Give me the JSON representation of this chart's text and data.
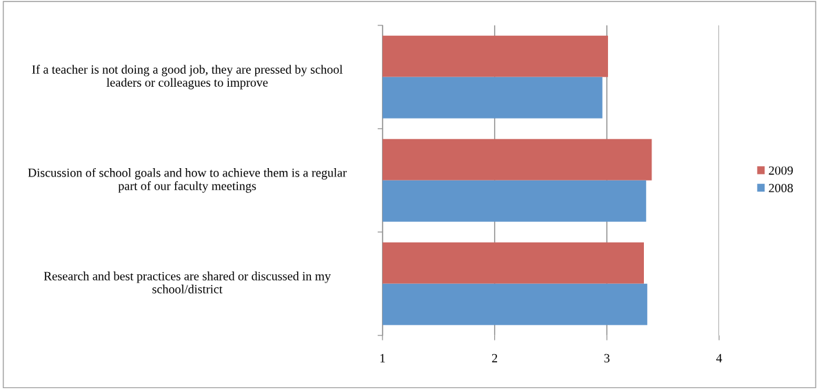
{
  "chart_data": {
    "type": "bar",
    "orientation": "horizontal",
    "categories": [
      "If a teacher is not doing a good job, they are pressed by school leaders or colleagues to improve",
      "Discussion of school goals and how to achieve them is a regular part of our faculty meetings",
      "Research and best practices are shared or discussed in my school/district"
    ],
    "series": [
      {
        "name": "2009",
        "color": "#cc6660",
        "values": [
          3.01,
          3.4,
          3.33
        ]
      },
      {
        "name": "2008",
        "color": "#6096cc",
        "values": [
          2.96,
          3.35,
          3.36
        ]
      }
    ],
    "xlim": [
      1,
      4
    ],
    "xticks": [
      1,
      2,
      3,
      4
    ],
    "grid": "x",
    "legend": "right"
  }
}
